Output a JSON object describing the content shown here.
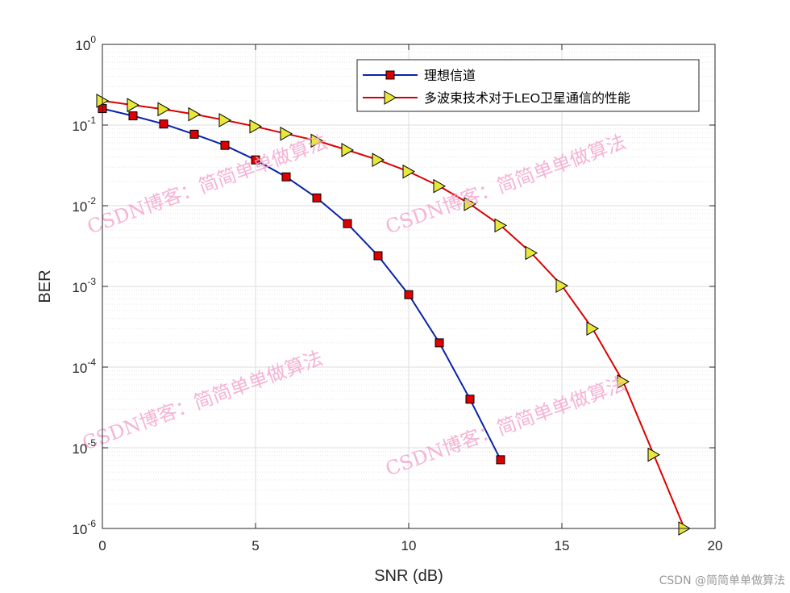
{
  "chart_data": {
    "type": "line",
    "title": "",
    "xlabel": "SNR (dB)",
    "ylabel": "BER",
    "xlim": [
      0,
      20
    ],
    "ylim": [
      1e-06,
      1
    ],
    "yscale": "log",
    "grid": true,
    "legend_position": "top-right",
    "x_ticks": [
      0,
      5,
      10,
      15,
      20
    ],
    "y_ticks": [
      {
        "base": "10",
        "exp": "-6",
        "value": 1e-06
      },
      {
        "base": "10",
        "exp": "-5",
        "value": 1e-05
      },
      {
        "base": "10",
        "exp": "-4",
        "value": 0.0001
      },
      {
        "base": "10",
        "exp": "-3",
        "value": 0.001
      },
      {
        "base": "10",
        "exp": "-2",
        "value": 0.01
      },
      {
        "base": "10",
        "exp": "-1",
        "value": 0.1
      },
      {
        "base": "10",
        "exp": "0",
        "value": 1
      }
    ],
    "series": [
      {
        "name": "理想信道",
        "color": "#0a22a8",
        "marker": "square",
        "marker_color": "#dd0000",
        "x": [
          0,
          1,
          2,
          3,
          4,
          5,
          6,
          7,
          8,
          9,
          10,
          11,
          12,
          13
        ],
        "y": [
          0.16,
          0.13,
          0.103,
          0.077,
          0.056,
          0.037,
          0.0228,
          0.0125,
          0.006,
          0.0024,
          0.00079,
          0.0002,
          4e-05,
          7.1e-06
        ]
      },
      {
        "name": "多波束技术对于LEO卫星通信的性能",
        "color": "#dd0000",
        "marker": "triangle-right",
        "marker_color": "#e8e83a",
        "x": [
          0,
          1,
          2,
          3,
          4,
          5,
          6,
          7,
          8,
          9,
          10,
          11,
          12,
          13,
          14,
          15,
          16,
          17,
          18,
          19
        ],
        "y": [
          0.2,
          0.177,
          0.157,
          0.136,
          0.115,
          0.096,
          0.078,
          0.064,
          0.049,
          0.037,
          0.0265,
          0.0175,
          0.0105,
          0.0057,
          0.0026,
          0.00102,
          0.0003,
          6.6e-05,
          8.2e-06,
          1e-06
        ]
      }
    ]
  },
  "watermarks": {
    "text": "CSDN博客：简简单单做算法",
    "footer": "CSDN @简简单单做算法"
  }
}
